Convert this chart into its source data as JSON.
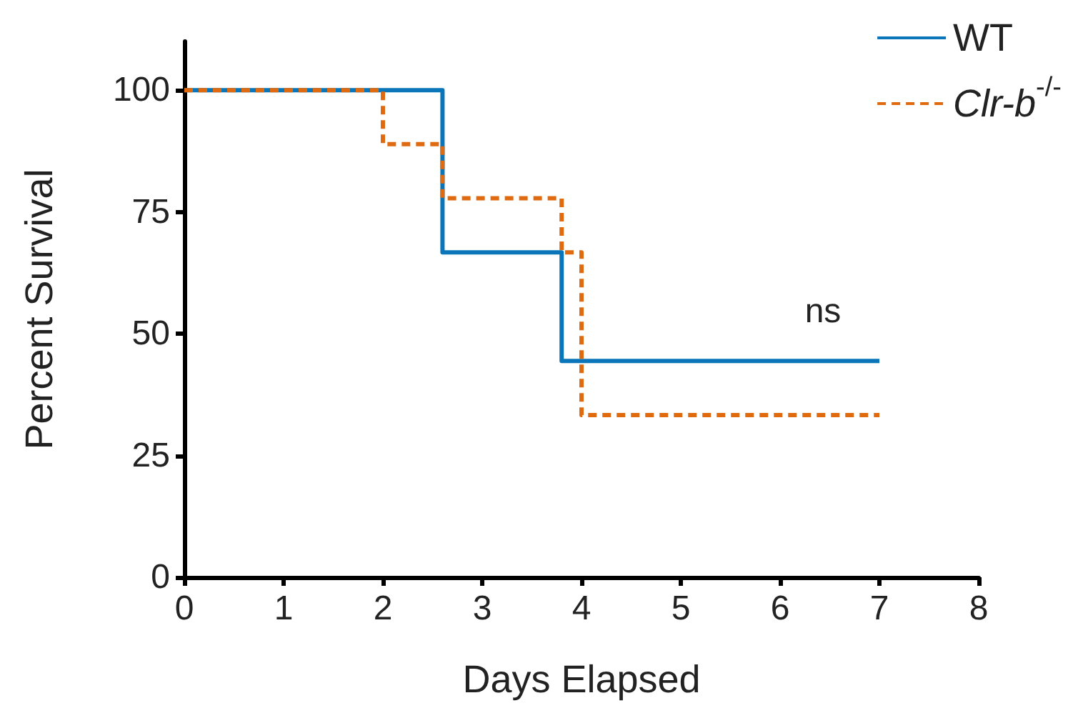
{
  "chart_data": {
    "type": "step",
    "xlabel": "Days Elapsed",
    "ylabel": "Percent Survival",
    "xlim": [
      0,
      8
    ],
    "xticks": [
      0,
      1,
      2,
      3,
      4,
      5,
      6,
      7,
      8
    ],
    "ylim": [
      0,
      110
    ],
    "yticks": [
      0,
      25,
      50,
      75,
      100
    ],
    "grid": false,
    "legend": "top right",
    "marker": "none",
    "annotations": [
      "ns"
    ],
    "series": [
      {
        "name": "WT",
        "color": "#0a75b8",
        "line_style": "solid",
        "x": [
          0,
          2.6,
          3.8,
          7
        ],
        "values": [
          100,
          66.7,
          44.4,
          44.4
        ]
      },
      {
        "name": "Clr-b$^{-/-}$",
        "color": "#e06a10",
        "line_style": "dashed",
        "x": [
          0,
          2.0,
          2.6,
          3.8,
          4.0,
          7
        ],
        "values": [
          100,
          88.9,
          77.8,
          66.7,
          33.3,
          33.3
        ]
      }
    ]
  }
}
